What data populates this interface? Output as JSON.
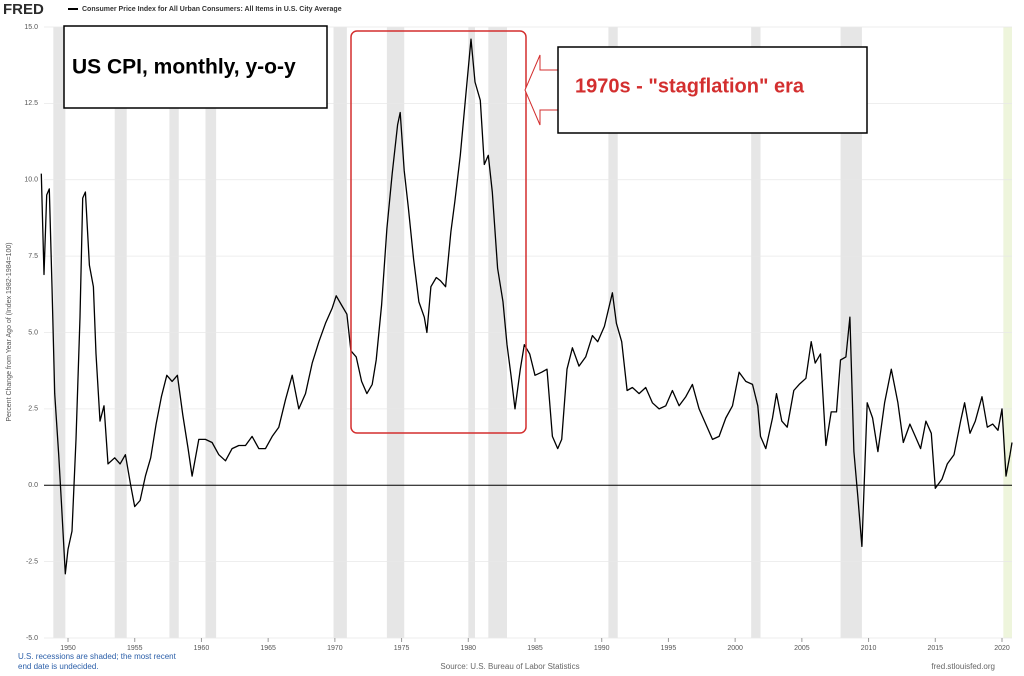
{
  "header": {
    "logo": "FRED",
    "legend": "Consumer Price Index for All Urban Consumers: All Items in U.S. City Average"
  },
  "chart_data": {
    "type": "line",
    "ylabel": "Percent Change from Year Ago of (Index 1982-1984=100)",
    "annotations": [
      "US CPI, monthly, y-o-y",
      "1970s - \"stagflation\" era"
    ],
    "x": [
      1948.0,
      1948.2,
      1948.4,
      1948.6,
      1948.8,
      1949.0,
      1949.3,
      1949.5,
      1949.8,
      1950.0,
      1950.3,
      1950.6,
      1950.9,
      1951.1,
      1951.3,
      1951.6,
      1951.9,
      1952.1,
      1952.4,
      1952.7,
      1953.0,
      1953.5,
      1953.9,
      1954.3,
      1954.7,
      1955.0,
      1955.4,
      1955.8,
      1956.2,
      1956.6,
      1957.0,
      1957.4,
      1957.8,
      1958.2,
      1958.6,
      1959.0,
      1959.3,
      1959.8,
      1960.3,
      1960.8,
      1961.3,
      1961.8,
      1962.3,
      1962.8,
      1963.3,
      1963.8,
      1964.3,
      1964.8,
      1965.3,
      1965.8,
      1966.3,
      1966.8,
      1967.3,
      1967.8,
      1968.3,
      1968.8,
      1969.3,
      1969.8,
      1970.1,
      1970.5,
      1970.9,
      1971.2,
      1971.6,
      1972.0,
      1972.4,
      1972.8,
      1973.1,
      1973.5,
      1973.9,
      1974.3,
      1974.7,
      1974.9,
      1975.2,
      1975.5,
      1975.9,
      1976.3,
      1976.7,
      1976.9,
      1977.2,
      1977.6,
      1977.9,
      1978.3,
      1978.7,
      1979.0,
      1979.4,
      1979.8,
      1980.2,
      1980.5,
      1980.9,
      1981.2,
      1981.5,
      1981.8,
      1982.2,
      1982.6,
      1982.9,
      1983.2,
      1983.5,
      1983.9,
      1984.2,
      1984.6,
      1985.0,
      1985.5,
      1985.9,
      1986.3,
      1986.7,
      1987.0,
      1987.4,
      1987.8,
      1988.3,
      1988.8,
      1989.3,
      1989.7,
      1990.2,
      1990.8,
      1991.1,
      1991.5,
      1991.9,
      1992.3,
      1992.8,
      1993.3,
      1993.8,
      1994.3,
      1994.8,
      1995.3,
      1995.8,
      1996.3,
      1996.8,
      1997.3,
      1997.8,
      1998.3,
      1998.8,
      1999.3,
      1999.8,
      2000.3,
      2000.8,
      2001.3,
      2001.7,
      2001.9,
      2002.3,
      2002.8,
      2003.1,
      2003.5,
      2003.9,
      2004.4,
      2004.8,
      2005.3,
      2005.7,
      2006.0,
      2006.4,
      2006.8,
      2007.2,
      2007.6,
      2007.9,
      2008.3,
      2008.6,
      2008.9,
      2009.2,
      2009.5,
      2009.9,
      2010.3,
      2010.7,
      2011.2,
      2011.7,
      2012.2,
      2012.6,
      2013.1,
      2013.5,
      2013.9,
      2014.3,
      2014.7,
      2015.0,
      2015.5,
      2015.9,
      2016.4,
      2016.9,
      2017.2,
      2017.6,
      2018.0,
      2018.5,
      2018.9,
      2019.3,
      2019.7,
      2020.0,
      2020.3,
      2020.6,
      2020.75
    ],
    "series": [
      {
        "name": "Consumer Price Index for All Urban Consumers: All Items in U.S. City Average",
        "color": "#000000",
        "values": [
          10.2,
          6.9,
          9.5,
          9.7,
          6.5,
          3.0,
          1.0,
          -0.5,
          -2.9,
          -2.1,
          -1.5,
          1.5,
          5.5,
          9.4,
          9.6,
          7.2,
          6.5,
          4.3,
          2.1,
          2.6,
          0.7,
          0.9,
          0.7,
          1.0,
          0.0,
          -0.7,
          -0.5,
          0.3,
          0.9,
          2.0,
          2.9,
          3.6,
          3.4,
          3.6,
          2.3,
          1.2,
          0.3,
          1.5,
          1.5,
          1.4,
          1.0,
          0.8,
          1.2,
          1.3,
          1.3,
          1.6,
          1.2,
          1.2,
          1.6,
          1.9,
          2.8,
          3.6,
          2.5,
          3.0,
          4.0,
          4.7,
          5.3,
          5.8,
          6.2,
          5.9,
          5.6,
          4.4,
          4.2,
          3.4,
          3.0,
          3.3,
          4.1,
          5.9,
          8.4,
          10.2,
          11.8,
          12.2,
          10.3,
          9.1,
          7.4,
          6.0,
          5.5,
          5.0,
          6.5,
          6.8,
          6.7,
          6.5,
          8.3,
          9.3,
          10.8,
          12.7,
          14.6,
          13.2,
          12.6,
          10.5,
          10.8,
          9.6,
          7.1,
          6.0,
          4.6,
          3.6,
          2.5,
          3.8,
          4.6,
          4.3,
          3.6,
          3.7,
          3.8,
          1.6,
          1.2,
          1.5,
          3.8,
          4.5,
          3.9,
          4.2,
          4.9,
          4.7,
          5.2,
          6.3,
          5.3,
          4.7,
          3.1,
          3.2,
          3.0,
          3.2,
          2.7,
          2.5,
          2.6,
          3.1,
          2.6,
          2.9,
          3.3,
          2.5,
          2.0,
          1.5,
          1.6,
          2.2,
          2.6,
          3.7,
          3.4,
          3.3,
          2.6,
          1.6,
          1.2,
          2.2,
          3.0,
          2.1,
          1.9,
          3.1,
          3.3,
          3.5,
          4.7,
          4.0,
          4.3,
          1.3,
          2.4,
          2.4,
          4.1,
          4.2,
          5.5,
          1.1,
          -0.4,
          -2.0,
          2.7,
          2.2,
          1.1,
          2.7,
          3.8,
          2.7,
          1.4,
          2.0,
          1.6,
          1.2,
          2.1,
          1.7,
          -0.1,
          0.2,
          0.7,
          1.0,
          2.1,
          2.7,
          1.7,
          2.1,
          2.9,
          1.9,
          2.0,
          1.8,
          2.5,
          0.3,
          1.0,
          1.4
        ]
      }
    ],
    "xlim": [
      1948.2,
      2020.75
    ],
    "xticks": [
      1950,
      1955,
      1960,
      1965,
      1970,
      1975,
      1980,
      1985,
      1990,
      1995,
      2000,
      2005,
      2010,
      2015,
      2020
    ],
    "ylim": [
      -5,
      15
    ],
    "yticks": [
      {
        "value": -5,
        "label": "-5.0"
      },
      {
        "value": -2.5,
        "label": "-2.5"
      },
      {
        "value": 0,
        "label": "0.0"
      },
      {
        "value": 2.5,
        "label": "2.5"
      },
      {
        "value": 5,
        "label": "5.0"
      },
      {
        "value": 7.5,
        "label": "7.5"
      },
      {
        "value": 10,
        "label": "10.0"
      },
      {
        "value": 12.5,
        "label": "12.5"
      },
      {
        "value": 15,
        "label": "15.0"
      }
    ],
    "grid": true,
    "recessions": [
      [
        1948.9,
        1949.8
      ],
      [
        1953.5,
        1954.4
      ],
      [
        1957.6,
        1958.3
      ],
      [
        1960.3,
        1961.1
      ],
      [
        1969.9,
        1970.9
      ],
      [
        1973.9,
        1975.2
      ],
      [
        1980.0,
        1980.5
      ],
      [
        1981.5,
        1982.9
      ],
      [
        1990.5,
        1991.2
      ],
      [
        2001.2,
        2001.9
      ],
      [
        2007.9,
        2009.5
      ],
      [
        2020.1,
        2020.75
      ]
    ],
    "recession_color": "#e6e6e6",
    "open_recession_color": "#eef5dc"
  },
  "footer": {
    "note": [
      "U.S. recessions are shaded; the most recent",
      "end date is undecided."
    ],
    "source": "Source: U.S. Bureau of Labor Statistics",
    "site": "fred.stlouisfed.org"
  }
}
